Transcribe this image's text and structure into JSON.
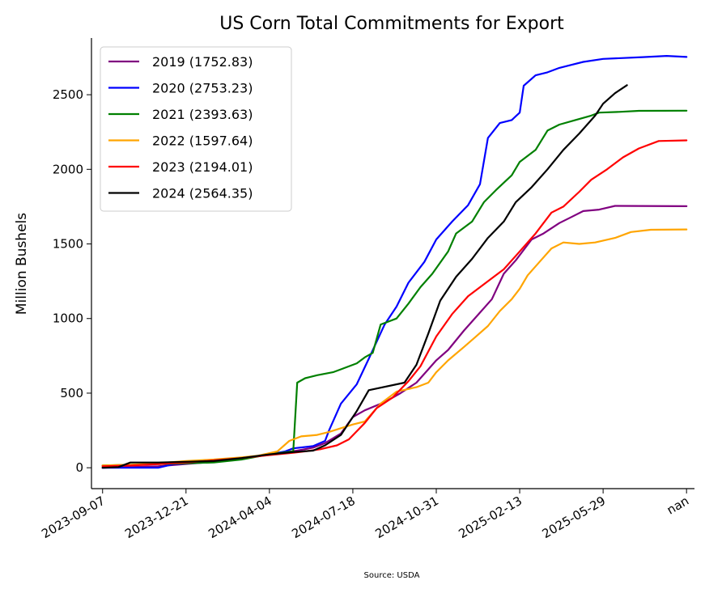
{
  "chart_data": {
    "type": "line",
    "title": "US Corn Total Commitments for Export",
    "ylabel": "Million Bushels",
    "xlabel": "",
    "source": "Source: USDA",
    "x_ticks": [
      "2023-09-07",
      "2023-12-21",
      "2024-04-04",
      "2024-07-18",
      "2024-10-31",
      "2025-02-13",
      "2025-05-29",
      "nan"
    ],
    "y_ticks": [
      0,
      500,
      1000,
      1500,
      2000,
      2500
    ],
    "ylim": [
      -140,
      2880
    ],
    "x_range_days": [
      -14,
      745
    ],
    "grid": false,
    "legend_position": "upper-left",
    "series": [
      {
        "name": "2019 (1752.83)",
        "color": "#800080",
        "points": [
          [
            0,
            0
          ],
          [
            70,
            10
          ],
          [
            140,
            40
          ],
          [
            175,
            60
          ],
          [
            210,
            90
          ],
          [
            245,
            115
          ],
          [
            265,
            135
          ],
          [
            280,
            165
          ],
          [
            300,
            230
          ],
          [
            315,
            340
          ],
          [
            330,
            385
          ],
          [
            355,
            440
          ],
          [
            375,
            500
          ],
          [
            395,
            570
          ],
          [
            410,
            660
          ],
          [
            420,
            720
          ],
          [
            435,
            790
          ],
          [
            455,
            920
          ],
          [
            470,
            1010
          ],
          [
            490,
            1130
          ],
          [
            505,
            1300
          ],
          [
            520,
            1390
          ],
          [
            540,
            1530
          ],
          [
            555,
            1570
          ],
          [
            575,
            1640
          ],
          [
            590,
            1680
          ],
          [
            605,
            1720
          ],
          [
            625,
            1730
          ],
          [
            645,
            1755
          ],
          [
            735,
            1753
          ]
        ]
      },
      {
        "name": "2020 (2753.23)",
        "color": "#0000ff",
        "points": [
          [
            0,
            0
          ],
          [
            45,
            0
          ],
          [
            70,
            0
          ],
          [
            90,
            25
          ],
          [
            140,
            40
          ],
          [
            175,
            60
          ],
          [
            210,
            90
          ],
          [
            230,
            110
          ],
          [
            240,
            130
          ],
          [
            265,
            145
          ],
          [
            280,
            180
          ],
          [
            285,
            250
          ],
          [
            300,
            430
          ],
          [
            320,
            560
          ],
          [
            335,
            730
          ],
          [
            355,
            960
          ],
          [
            370,
            1080
          ],
          [
            385,
            1240
          ],
          [
            405,
            1380
          ],
          [
            420,
            1530
          ],
          [
            440,
            1650
          ],
          [
            460,
            1760
          ],
          [
            475,
            1900
          ],
          [
            485,
            2210
          ],
          [
            500,
            2310
          ],
          [
            515,
            2330
          ],
          [
            525,
            2380
          ],
          [
            530,
            2560
          ],
          [
            545,
            2630
          ],
          [
            560,
            2650
          ],
          [
            575,
            2680
          ],
          [
            590,
            2700
          ],
          [
            605,
            2720
          ],
          [
            630,
            2740
          ],
          [
            680,
            2752
          ],
          [
            710,
            2760
          ],
          [
            735,
            2753
          ]
        ]
      },
      {
        "name": "2021 (2393.63)",
        "color": "#008000",
        "points": [
          [
            0,
            15
          ],
          [
            70,
            25
          ],
          [
            140,
            35
          ],
          [
            175,
            55
          ],
          [
            210,
            90
          ],
          [
            225,
            100
          ],
          [
            240,
            110
          ],
          [
            245,
            570
          ],
          [
            255,
            600
          ],
          [
            270,
            620
          ],
          [
            290,
            640
          ],
          [
            300,
            660
          ],
          [
            320,
            700
          ],
          [
            330,
            740
          ],
          [
            340,
            770
          ],
          [
            350,
            960
          ],
          [
            370,
            1000
          ],
          [
            385,
            1100
          ],
          [
            400,
            1210
          ],
          [
            415,
            1300
          ],
          [
            435,
            1450
          ],
          [
            445,
            1570
          ],
          [
            465,
            1650
          ],
          [
            480,
            1780
          ],
          [
            495,
            1860
          ],
          [
            515,
            1960
          ],
          [
            525,
            2050
          ],
          [
            545,
            2130
          ],
          [
            560,
            2260
          ],
          [
            575,
            2300
          ],
          [
            595,
            2330
          ],
          [
            615,
            2360
          ],
          [
            625,
            2380
          ],
          [
            650,
            2385
          ],
          [
            675,
            2392
          ],
          [
            735,
            2393
          ]
        ]
      },
      {
        "name": "2022 (1597.64)",
        "color": "#ffa500",
        "points": [
          [
            0,
            15
          ],
          [
            35,
            20
          ],
          [
            70,
            30
          ],
          [
            105,
            45
          ],
          [
            140,
            55
          ],
          [
            175,
            70
          ],
          [
            195,
            80
          ],
          [
            220,
            110
          ],
          [
            235,
            180
          ],
          [
            250,
            210
          ],
          [
            270,
            220
          ],
          [
            285,
            240
          ],
          [
            300,
            265
          ],
          [
            315,
            290
          ],
          [
            330,
            310
          ],
          [
            350,
            430
          ],
          [
            370,
            510
          ],
          [
            395,
            540
          ],
          [
            410,
            570
          ],
          [
            420,
            640
          ],
          [
            435,
            720
          ],
          [
            455,
            810
          ],
          [
            470,
            880
          ],
          [
            485,
            950
          ],
          [
            500,
            1050
          ],
          [
            515,
            1130
          ],
          [
            525,
            1200
          ],
          [
            535,
            1290
          ],
          [
            550,
            1380
          ],
          [
            565,
            1470
          ],
          [
            580,
            1510
          ],
          [
            600,
            1500
          ],
          [
            620,
            1510
          ],
          [
            645,
            1540
          ],
          [
            665,
            1580
          ],
          [
            690,
            1595
          ],
          [
            735,
            1597
          ]
        ]
      },
      {
        "name": "2023 (2194.01)",
        "color": "#ff0000",
        "points": [
          [
            0,
            10
          ],
          [
            35,
            15
          ],
          [
            70,
            25
          ],
          [
            105,
            35
          ],
          [
            140,
            50
          ],
          [
            175,
            65
          ],
          [
            210,
            85
          ],
          [
            240,
            100
          ],
          [
            255,
            110
          ],
          [
            275,
            125
          ],
          [
            295,
            150
          ],
          [
            310,
            190
          ],
          [
            330,
            300
          ],
          [
            345,
            400
          ],
          [
            365,
            470
          ],
          [
            385,
            580
          ],
          [
            400,
            680
          ],
          [
            420,
            880
          ],
          [
            440,
            1030
          ],
          [
            460,
            1150
          ],
          [
            485,
            1250
          ],
          [
            505,
            1330
          ],
          [
            520,
            1420
          ],
          [
            545,
            1570
          ],
          [
            565,
            1710
          ],
          [
            580,
            1750
          ],
          [
            600,
            1850
          ],
          [
            615,
            1930
          ],
          [
            635,
            2000
          ],
          [
            655,
            2080
          ],
          [
            675,
            2140
          ],
          [
            700,
            2190
          ],
          [
            735,
            2194
          ]
        ]
      },
      {
        "name": "2024 (2564.35)",
        "color": "#000000",
        "points": [
          [
            0,
            0
          ],
          [
            20,
            5
          ],
          [
            35,
            35
          ],
          [
            70,
            35
          ],
          [
            105,
            40
          ],
          [
            140,
            45
          ],
          [
            175,
            65
          ],
          [
            210,
            90
          ],
          [
            240,
            105
          ],
          [
            265,
            115
          ],
          [
            280,
            150
          ],
          [
            300,
            220
          ],
          [
            310,
            300
          ],
          [
            320,
            380
          ],
          [
            335,
            520
          ],
          [
            380,
            570
          ],
          [
            395,
            690
          ],
          [
            410,
            900
          ],
          [
            425,
            1120
          ],
          [
            445,
            1280
          ],
          [
            465,
            1400
          ],
          [
            485,
            1540
          ],
          [
            505,
            1650
          ],
          [
            520,
            1780
          ],
          [
            540,
            1880
          ],
          [
            560,
            2000
          ],
          [
            580,
            2130
          ],
          [
            600,
            2240
          ],
          [
            620,
            2360
          ],
          [
            630,
            2440
          ],
          [
            645,
            2510
          ],
          [
            660,
            2564
          ]
        ]
      }
    ]
  }
}
